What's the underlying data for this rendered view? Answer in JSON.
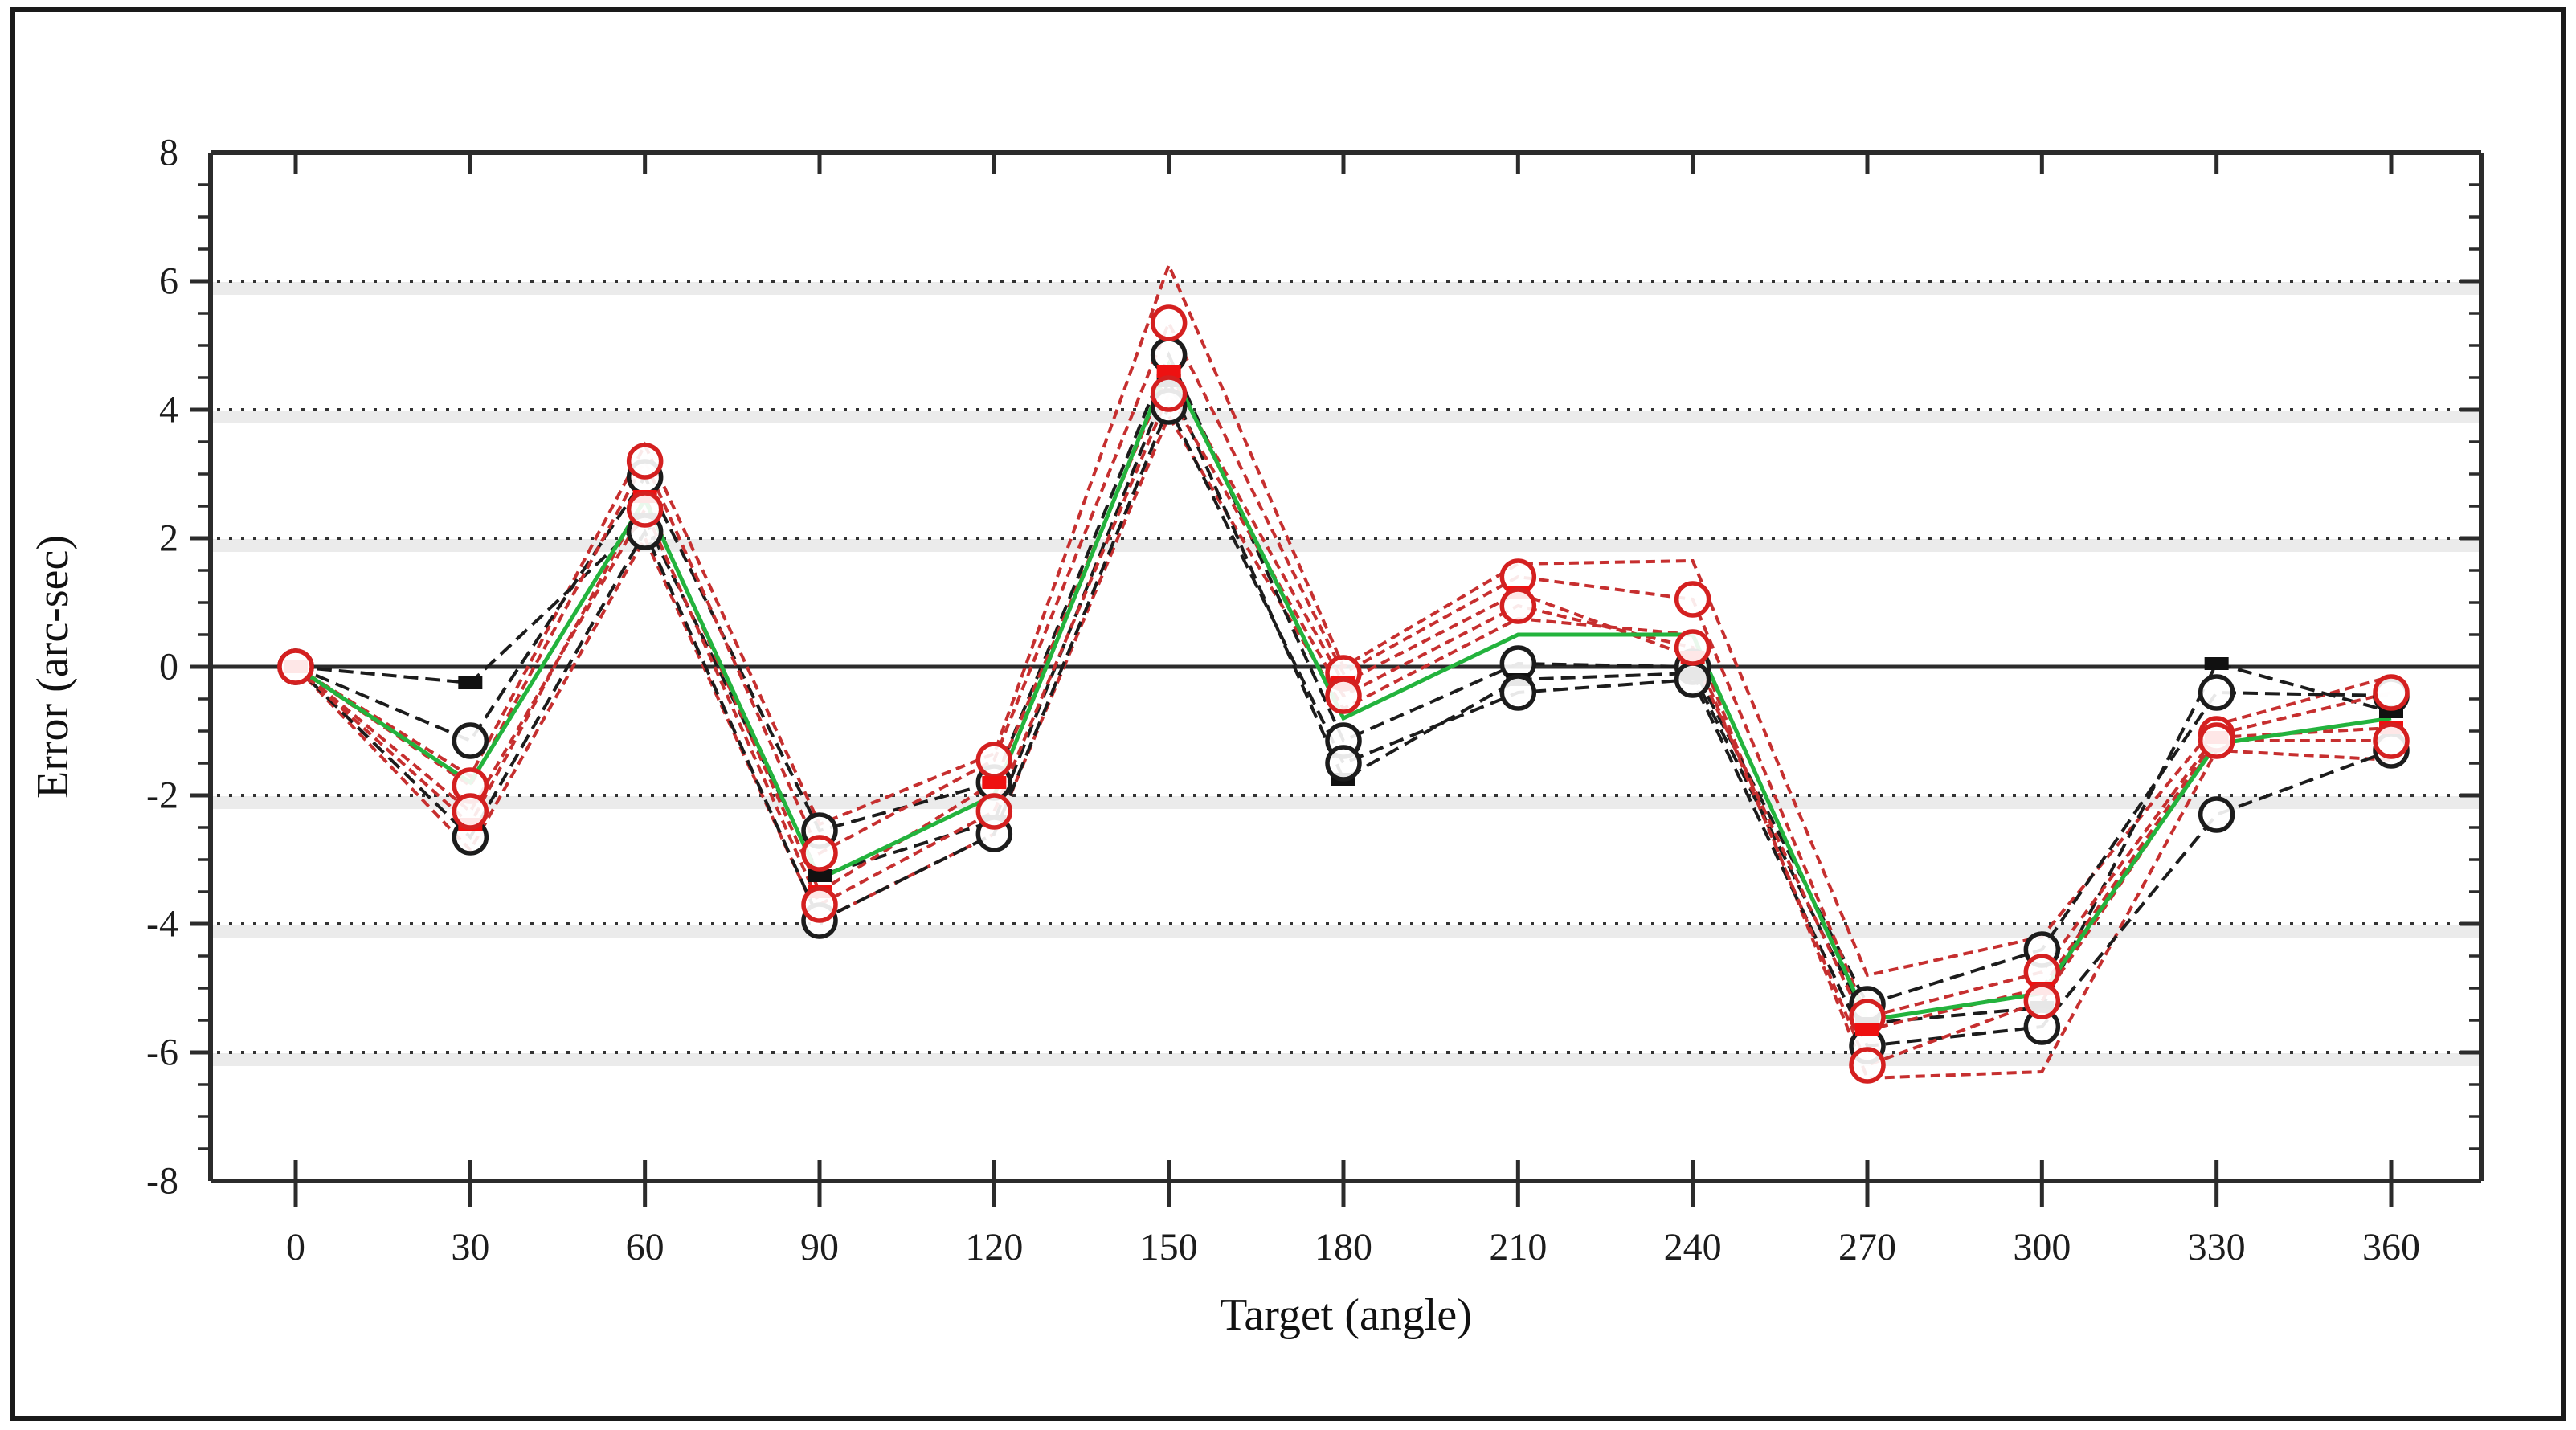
{
  "figure": {
    "background": "#ffffff",
    "border_color": "#1a1a1a",
    "frame_color": "#2b2b2b",
    "grid_color": "#333333",
    "grid_smear_color": "#ebebeb",
    "zero_line_color": "#2b2b2b"
  },
  "chart_data": {
    "type": "line",
    "title": "",
    "xlabel": "Target (angle)",
    "ylabel": "Error (arc-sec)",
    "x": [
      0,
      30,
      60,
      90,
      120,
      150,
      180,
      210,
      240,
      270,
      300,
      330,
      360
    ],
    "xlim": [
      -15,
      376
    ],
    "ylim": [
      -8,
      8
    ],
    "grid": "dotted horizontal at ±2, ±4, ±6; solid line at 0",
    "legend_position": "none",
    "x_ticks": {
      "values": [
        0,
        30,
        60,
        90,
        120,
        150,
        180,
        210,
        240,
        270,
        300,
        330,
        360
      ],
      "labels": [
        "0",
        "30",
        "60",
        "90",
        "120",
        "150",
        "180",
        "210",
        "240",
        "270",
        "300",
        "330",
        "360"
      ]
    },
    "y_ticks": {
      "values": [
        8,
        6,
        4,
        2,
        0,
        -2,
        -4,
        -6,
        -8
      ],
      "labels": [
        "8",
        "6",
        "4",
        "2",
        "0",
        "-2",
        "-4",
        "-6",
        "-8"
      ],
      "minor_step": 0.5
    },
    "gridlines_at": [
      6,
      4,
      2,
      -2,
      -4,
      -6
    ],
    "series": [
      {
        "name": "red-envelope-high",
        "color": "#c62f2f",
        "marker": "none",
        "dash": "12 7",
        "values": [
          0,
          -1.7,
          3.45,
          -2.45,
          -1.35,
          6.25,
          0.0,
          1.6,
          1.65,
          -4.8,
          -4.2,
          -0.9,
          -0.15
        ]
      },
      {
        "name": "red-envelope-low",
        "color": "#c62f2f",
        "marker": "none",
        "dash": "12 7",
        "values": [
          0,
          -2.85,
          2.0,
          -3.95,
          -2.6,
          3.9,
          -0.65,
          0.75,
          0.5,
          -6.4,
          -6.3,
          -1.3,
          -1.45
        ]
      },
      {
        "name": "black-run-1",
        "color": "#1c1c1c",
        "marker": "circle",
        "marker_color": "#1c1c1c",
        "dash": "18 9",
        "values": [
          0,
          -1.15,
          2.95,
          -2.55,
          -1.8,
          4.85,
          -1.15,
          0.05,
          0.0,
          -5.25,
          -4.4,
          -0.4,
          -0.45
        ]
      },
      {
        "name": "black-run-2",
        "color": "#1c1c1c",
        "marker": "square",
        "marker_color": "#111111",
        "dash": "18 9",
        "values": [
          0,
          -0.25,
          2.3,
          -3.25,
          -2.4,
          4.45,
          -1.75,
          -0.2,
          -0.1,
          -5.55,
          -5.3,
          0.05,
          -0.7
        ]
      },
      {
        "name": "black-run-3",
        "color": "#1c1c1c",
        "marker": "circle",
        "marker_color": "#1c1c1c",
        "dash": "18 9",
        "values": [
          0,
          -2.65,
          2.1,
          -3.95,
          -2.6,
          4.05,
          -1.5,
          -0.4,
          -0.2,
          -5.9,
          -5.6,
          -2.3,
          -1.3
        ]
      },
      {
        "name": "red-run-1",
        "color": "#c62f2f",
        "marker": "circle",
        "marker_color": "#d42020",
        "dash": "12 7",
        "values": [
          0,
          -1.85,
          3.2,
          -2.9,
          -1.45,
          5.35,
          -0.1,
          1.4,
          1.05,
          -5.45,
          -4.75,
          -1.05,
          -0.4
        ]
      },
      {
        "name": "red-run-2",
        "color": "#c62f2f",
        "marker": "square",
        "marker_color": "#ee1111",
        "dash": "12 7",
        "values": [
          0,
          -2.45,
          2.65,
          -3.5,
          -1.8,
          4.6,
          -0.25,
          1.15,
          0.15,
          -5.65,
          -5.0,
          -1.1,
          -0.95
        ]
      },
      {
        "name": "red-run-3",
        "color": "#c62f2f",
        "marker": "circle",
        "marker_color": "#d42020",
        "dash": "12 7",
        "values": [
          0,
          -2.25,
          2.45,
          -3.7,
          -2.25,
          4.25,
          -0.45,
          0.95,
          0.3,
          -6.2,
          -5.2,
          -1.15,
          -1.15
        ]
      },
      {
        "name": "green-mean",
        "color": "#23b33d",
        "marker": "none",
        "dash": "",
        "values": [
          0,
          -1.8,
          2.6,
          -3.3,
          -2.0,
          4.7,
          -0.8,
          0.5,
          0.5,
          -5.5,
          -5.08,
          -1.2,
          -0.8
        ]
      }
    ]
  }
}
